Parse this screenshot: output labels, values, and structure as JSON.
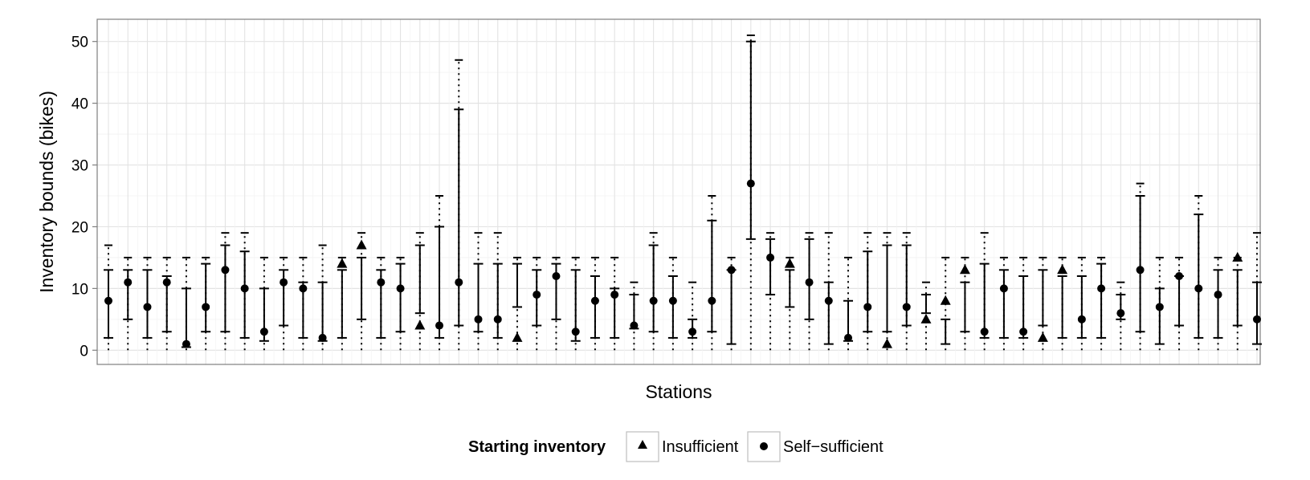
{
  "chart_data": {
    "type": "scatter",
    "title": "",
    "xlabel": "Stations",
    "ylabel": "Inventory bounds (bikes)",
    "ylim": [
      -2.3,
      53.6
    ],
    "yticks": [
      0,
      10,
      20,
      30,
      40,
      50
    ],
    "legend": {
      "title": "Starting inventory",
      "position": "bottom",
      "entries": [
        {
          "label": "Insufficient",
          "shape": "triangle"
        },
        {
          "label": "Self−sufficient",
          "shape": "circle"
        }
      ]
    },
    "series": [
      {
        "name": "Insufficient",
        "shape": "triangle"
      },
      {
        "name": "Self−sufficient",
        "shape": "circle"
      }
    ],
    "stations": [
      {
        "id": 1,
        "start": 8,
        "status": "Self−sufficient",
        "lower": 2,
        "upper": 13,
        "cap": 17
      },
      {
        "id": 2,
        "start": 11,
        "status": "Self−sufficient",
        "lower": 5,
        "upper": 13,
        "cap": 15
      },
      {
        "id": 3,
        "start": 7,
        "status": "Self−sufficient",
        "lower": 2,
        "upper": 13,
        "cap": 15
      },
      {
        "id": 4,
        "start": 11,
        "status": "Self−sufficient",
        "lower": 3,
        "upper": 12,
        "cap": 15
      },
      {
        "id": 5,
        "start": 1,
        "status": "Self−sufficient",
        "lower": 0.5,
        "upper": 10,
        "cap": 15
      },
      {
        "id": 6,
        "start": 7,
        "status": "Self−sufficient",
        "lower": 3,
        "upper": 14,
        "cap": 15
      },
      {
        "id": 7,
        "start": 13,
        "status": "Self−sufficient",
        "lower": 3,
        "upper": 17,
        "cap": 19
      },
      {
        "id": 8,
        "start": 10,
        "status": "Self−sufficient",
        "lower": 2,
        "upper": 16,
        "cap": 19
      },
      {
        "id": 9,
        "start": 3,
        "status": "Self−sufficient",
        "lower": 1.5,
        "upper": 10,
        "cap": 15
      },
      {
        "id": 10,
        "start": 11,
        "status": "Self−sufficient",
        "lower": 4,
        "upper": 13,
        "cap": 15
      },
      {
        "id": 11,
        "start": 10,
        "status": "Self−sufficient",
        "lower": 2,
        "upper": 11,
        "cap": 15
      },
      {
        "id": 12,
        "start": 2,
        "status": "Self−sufficient",
        "lower": 1.5,
        "upper": 11,
        "cap": 17
      },
      {
        "id": 13,
        "start": 14,
        "status": "Insufficient",
        "lower": 2,
        "upper": 13,
        "cap": 15
      },
      {
        "id": 14,
        "start": 17,
        "status": "Insufficient",
        "lower": 5,
        "upper": 15,
        "cap": 19
      },
      {
        "id": 15,
        "start": 11,
        "status": "Self−sufficient",
        "lower": 2,
        "upper": 13,
        "cap": 15
      },
      {
        "id": 16,
        "start": 10,
        "status": "Self−sufficient",
        "lower": 3,
        "upper": 14,
        "cap": 15
      },
      {
        "id": 17,
        "start": 4,
        "status": "Insufficient",
        "lower": 6,
        "upper": 17,
        "cap": 19
      },
      {
        "id": 18,
        "start": 4,
        "status": "Self−sufficient",
        "lower": 2,
        "upper": 20,
        "cap": 25
      },
      {
        "id": 19,
        "start": 11,
        "status": "Self−sufficient",
        "lower": 4,
        "upper": 39,
        "cap": 47
      },
      {
        "id": 20,
        "start": 5,
        "status": "Self−sufficient",
        "lower": 3,
        "upper": 14,
        "cap": 19
      },
      {
        "id": 21,
        "start": 5,
        "status": "Self−sufficient",
        "lower": 2,
        "upper": 14,
        "cap": 19
      },
      {
        "id": 22,
        "start": 2,
        "status": "Insufficient",
        "lower": 7,
        "upper": 14,
        "cap": 15
      },
      {
        "id": 23,
        "start": 9,
        "status": "Self−sufficient",
        "lower": 4,
        "upper": 13,
        "cap": 15
      },
      {
        "id": 24,
        "start": 12,
        "status": "Self−sufficient",
        "lower": 5,
        "upper": 14,
        "cap": 15
      },
      {
        "id": 25,
        "start": 3,
        "status": "Self−sufficient",
        "lower": 1.5,
        "upper": 13,
        "cap": 15
      },
      {
        "id": 26,
        "start": 8,
        "status": "Self−sufficient",
        "lower": 2,
        "upper": 12,
        "cap": 15
      },
      {
        "id": 27,
        "start": 9,
        "status": "Self−sufficient",
        "lower": 2,
        "upper": 10,
        "cap": 15
      },
      {
        "id": 28,
        "start": 4,
        "status": "Self−sufficient",
        "lower": 3.5,
        "upper": 9,
        "cap": 11
      },
      {
        "id": 29,
        "start": 8,
        "status": "Self−sufficient",
        "lower": 3,
        "upper": 17,
        "cap": 19
      },
      {
        "id": 30,
        "start": 8,
        "status": "Self−sufficient",
        "lower": 2,
        "upper": 12,
        "cap": 15
      },
      {
        "id": 31,
        "start": 3,
        "status": "Self−sufficient",
        "lower": 2,
        "upper": 5,
        "cap": 11
      },
      {
        "id": 32,
        "start": 8,
        "status": "Self−sufficient",
        "lower": 3,
        "upper": 21,
        "cap": 25
      },
      {
        "id": 33,
        "start": 13,
        "status": "Self−sufficient",
        "lower": 1,
        "upper": 13,
        "cap": 15
      },
      {
        "id": 34,
        "start": 27,
        "status": "Self−sufficient",
        "lower": 18,
        "upper": 50,
        "cap": 51
      },
      {
        "id": 35,
        "start": 15,
        "status": "Self−sufficient",
        "lower": 9,
        "upper": 18,
        "cap": 19
      },
      {
        "id": 36,
        "start": 14,
        "status": "Insufficient",
        "lower": 7,
        "upper": 13,
        "cap": 15
      },
      {
        "id": 37,
        "start": 11,
        "status": "Self−sufficient",
        "lower": 5,
        "upper": 18,
        "cap": 19
      },
      {
        "id": 38,
        "start": 8,
        "status": "Self−sufficient",
        "lower": 1,
        "upper": 11,
        "cap": 19
      },
      {
        "id": 39,
        "start": 2,
        "status": "Self−sufficient",
        "lower": 1.5,
        "upper": 8,
        "cap": 15
      },
      {
        "id": 40,
        "start": 7,
        "status": "Self−sufficient",
        "lower": 3,
        "upper": 16,
        "cap": 19
      },
      {
        "id": 41,
        "start": 1,
        "status": "Insufficient",
        "lower": 3,
        "upper": 17,
        "cap": 19
      },
      {
        "id": 42,
        "start": 7,
        "status": "Self−sufficient",
        "lower": 4,
        "upper": 17,
        "cap": 19
      },
      {
        "id": 43,
        "start": 5,
        "status": "Insufficient",
        "lower": 6,
        "upper": 9,
        "cap": 11
      },
      {
        "id": 44,
        "start": 8,
        "status": "Insufficient",
        "lower": 1,
        "upper": 5,
        "cap": 15
      },
      {
        "id": 45,
        "start": 13,
        "status": "Insufficient",
        "lower": 3,
        "upper": 11,
        "cap": 15
      },
      {
        "id": 46,
        "start": 3,
        "status": "Self−sufficient",
        "lower": 2,
        "upper": 14,
        "cap": 19
      },
      {
        "id": 47,
        "start": 10,
        "status": "Self−sufficient",
        "lower": 2,
        "upper": 13,
        "cap": 15
      },
      {
        "id": 48,
        "start": 3,
        "status": "Self−sufficient",
        "lower": 2,
        "upper": 12,
        "cap": 15
      },
      {
        "id": 49,
        "start": 2,
        "status": "Insufficient",
        "lower": 4,
        "upper": 13,
        "cap": 15
      },
      {
        "id": 50,
        "start": 13,
        "status": "Insufficient",
        "lower": 2,
        "upper": 12,
        "cap": 15
      },
      {
        "id": 51,
        "start": 5,
        "status": "Self−sufficient",
        "lower": 2,
        "upper": 12,
        "cap": 15
      },
      {
        "id": 52,
        "start": 10,
        "status": "Self−sufficient",
        "lower": 2,
        "upper": 14,
        "cap": 15
      },
      {
        "id": 53,
        "start": 6,
        "status": "Self−sufficient",
        "lower": 5,
        "upper": 9,
        "cap": 11
      },
      {
        "id": 54,
        "start": 13,
        "status": "Self−sufficient",
        "lower": 3,
        "upper": 25,
        "cap": 27
      },
      {
        "id": 55,
        "start": 7,
        "status": "Self−sufficient",
        "lower": 1,
        "upper": 10,
        "cap": 15
      },
      {
        "id": 56,
        "start": 12,
        "status": "Self−sufficient",
        "lower": 4,
        "upper": 12,
        "cap": 15
      },
      {
        "id": 57,
        "start": 10,
        "status": "Self−sufficient",
        "lower": 2,
        "upper": 22,
        "cap": 25
      },
      {
        "id": 58,
        "start": 9,
        "status": "Self−sufficient",
        "lower": 2,
        "upper": 13,
        "cap": 15
      },
      {
        "id": 59,
        "start": 15,
        "status": "Insufficient",
        "lower": 4,
        "upper": 13,
        "cap": 15
      },
      {
        "id": 60,
        "start": 5,
        "status": "Self−sufficient",
        "lower": 1,
        "upper": 11,
        "cap": 19
      }
    ]
  }
}
